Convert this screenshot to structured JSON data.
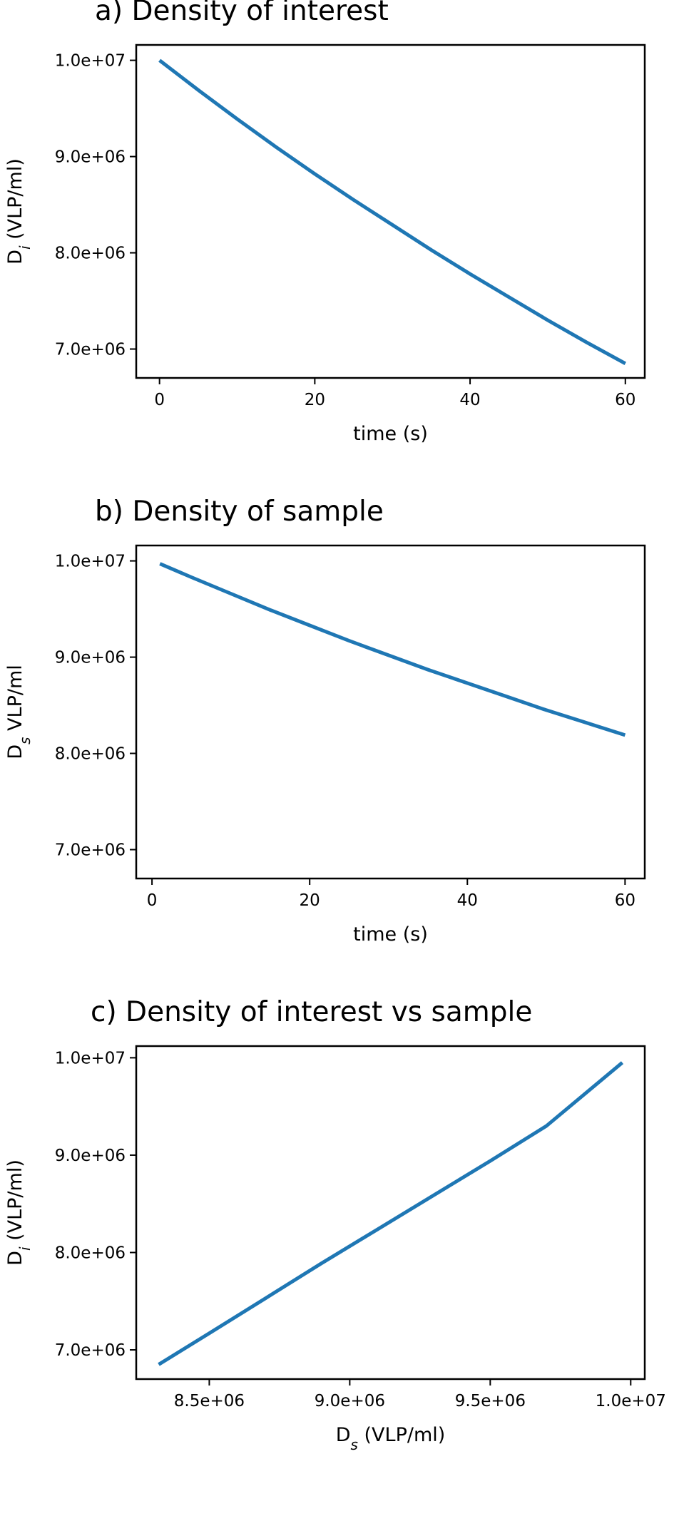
{
  "colors": {
    "series": "#1f77b4",
    "axes": "#000000",
    "background": "#ffffff"
  },
  "chart_data": [
    {
      "type": "line",
      "title": "a) Density of interest",
      "xlabel": "time (s)",
      "ylabel": {
        "base": "D",
        "sub": "i",
        "rest": " (VLP/ml)"
      },
      "xlim": [
        -3,
        62.5
      ],
      "ylim": [
        6700000,
        10160000
      ],
      "xticks": [
        {
          "value": 0,
          "label": "0"
        },
        {
          "value": 20,
          "label": "20"
        },
        {
          "value": 40,
          "label": "40"
        },
        {
          "value": 60,
          "label": "60"
        }
      ],
      "yticks": [
        {
          "value": 7000000,
          "label": "7.0e+06"
        },
        {
          "value": 8000000,
          "label": "8.0e+06"
        },
        {
          "value": 9000000,
          "label": "9.0e+06"
        },
        {
          "value": 10000000,
          "label": "1.0e+07"
        }
      ],
      "series": [
        {
          "x": [
            0,
            5,
            10,
            15,
            20,
            25,
            30,
            35,
            40,
            45,
            50,
            55,
            60
          ],
          "y": [
            10000000,
            9690000,
            9390000,
            9100000,
            8820000,
            8550000,
            8290000,
            8030000,
            7780000,
            7540000,
            7300000,
            7070000,
            6850000
          ]
        }
      ]
    },
    {
      "type": "line",
      "title": "b) Density of sample",
      "xlabel": "time (s)",
      "ylabel": {
        "base": "D",
        "sub": "s",
        "rest": " VLP/ml"
      },
      "xlim": [
        -2,
        62.5
      ],
      "ylim": [
        6700000,
        10160000
      ],
      "xticks": [
        {
          "value": 0,
          "label": "0"
        },
        {
          "value": 20,
          "label": "20"
        },
        {
          "value": 40,
          "label": "40"
        },
        {
          "value": 60,
          "label": "60"
        }
      ],
      "yticks": [
        {
          "value": 7000000,
          "label": "7.0e+06"
        },
        {
          "value": 8000000,
          "label": "8.0e+06"
        },
        {
          "value": 9000000,
          "label": "9.0e+06"
        },
        {
          "value": 10000000,
          "label": "1.0e+07"
        }
      ],
      "series": [
        {
          "x": [
            1,
            5,
            10,
            15,
            20,
            25,
            30,
            35,
            40,
            45,
            50,
            55,
            60
          ],
          "y": [
            9970000,
            9830000,
            9660000,
            9490000,
            9330000,
            9170000,
            9020000,
            8870000,
            8730000,
            8590000,
            8450000,
            8320000,
            8190000
          ]
        }
      ]
    },
    {
      "type": "line",
      "title": "c) Density of interest vs sample",
      "xlabel": {
        "base": "D",
        "sub": "s",
        "rest": " (VLP/ml)"
      },
      "ylabel": {
        "base": "D",
        "sub": "i",
        "rest": " (VLP/ml)"
      },
      "xlim": [
        8240000,
        10050000
      ],
      "ylim": [
        6700000,
        10120000
      ],
      "xticks": [
        {
          "value": 8500000,
          "label": "8.5e+06"
        },
        {
          "value": 9000000,
          "label": "9.0e+06"
        },
        {
          "value": 9500000,
          "label": "9.5e+06"
        },
        {
          "value": 10000000,
          "label": "1.0e+07"
        }
      ],
      "yticks": [
        {
          "value": 7000000,
          "label": "7.0e+06"
        },
        {
          "value": 8000000,
          "label": "8.0e+06"
        },
        {
          "value": 9000000,
          "label": "9.0e+06"
        },
        {
          "value": 10000000,
          "label": "1.0e+07"
        }
      ],
      "series": [
        {
          "x": [
            8320000,
            8500000,
            8700000,
            8900000,
            9100000,
            9300000,
            9500000,
            9700000,
            9970000
          ],
          "y": [
            6850000,
            7170000,
            7530000,
            7890000,
            8240000,
            8590000,
            8940000,
            9300000,
            9950000
          ]
        }
      ]
    }
  ]
}
